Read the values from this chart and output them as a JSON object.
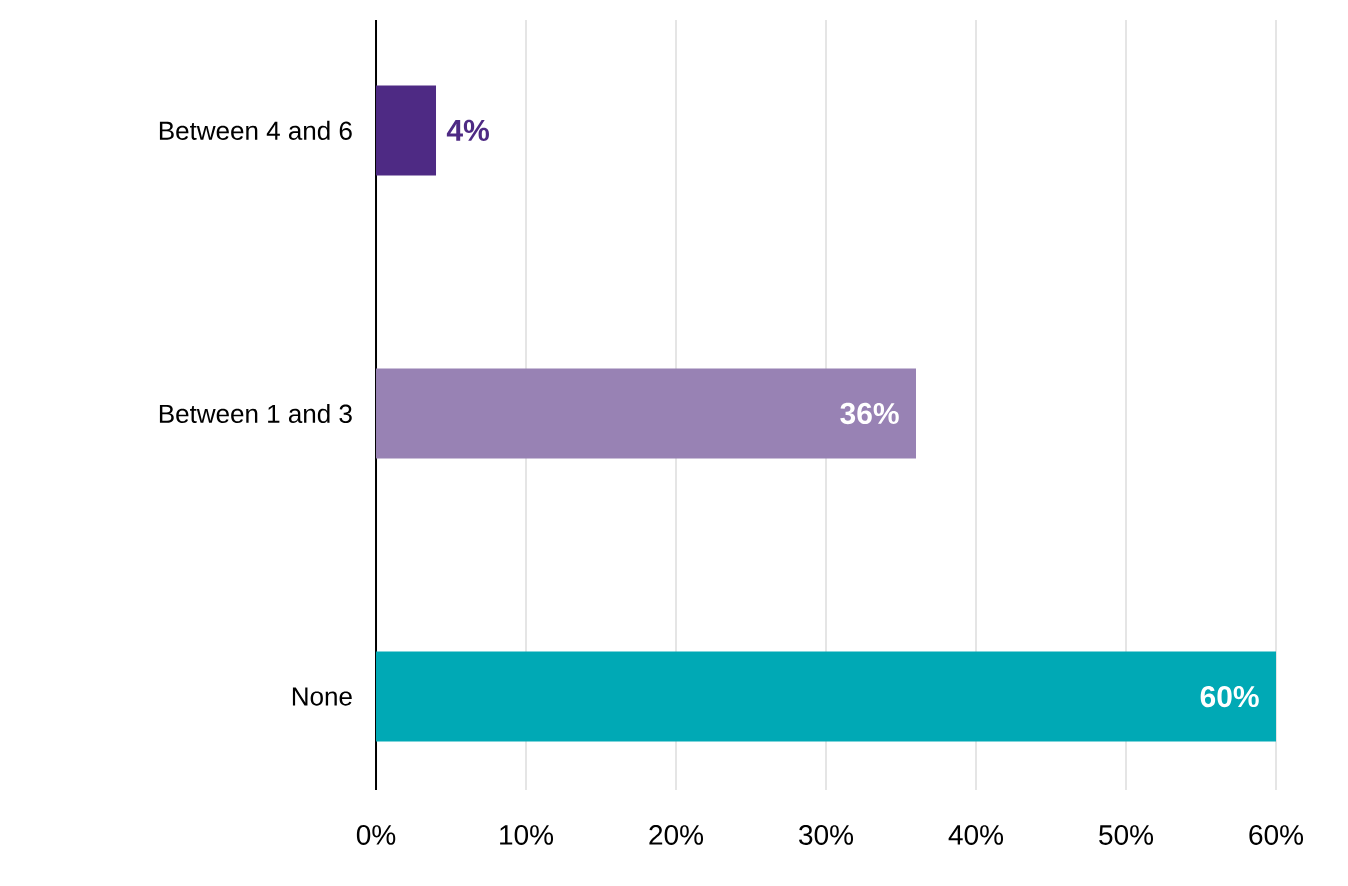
{
  "chart_data": {
    "type": "bar",
    "orientation": "horizontal",
    "categories": [
      "Between 4 and 6",
      "Between 1 and 3",
      "None"
    ],
    "values": [
      4,
      36,
      60
    ],
    "colors": [
      "#4e2a84",
      "#9882b4",
      "#00a9b5"
    ],
    "value_labels": [
      "4%",
      "36%",
      "60%"
    ],
    "xlim": [
      0,
      60
    ],
    "xticks": [
      {
        "value": 0,
        "label": "0%"
      },
      {
        "value": 10,
        "label": "10%"
      },
      {
        "value": 20,
        "label": "20%"
      },
      {
        "value": 30,
        "label": "30%"
      },
      {
        "value": 40,
        "label": "40%"
      },
      {
        "value": 50,
        "label": "50%"
      },
      {
        "value": 60,
        "label": "60%"
      }
    ],
    "grid": "x"
  }
}
